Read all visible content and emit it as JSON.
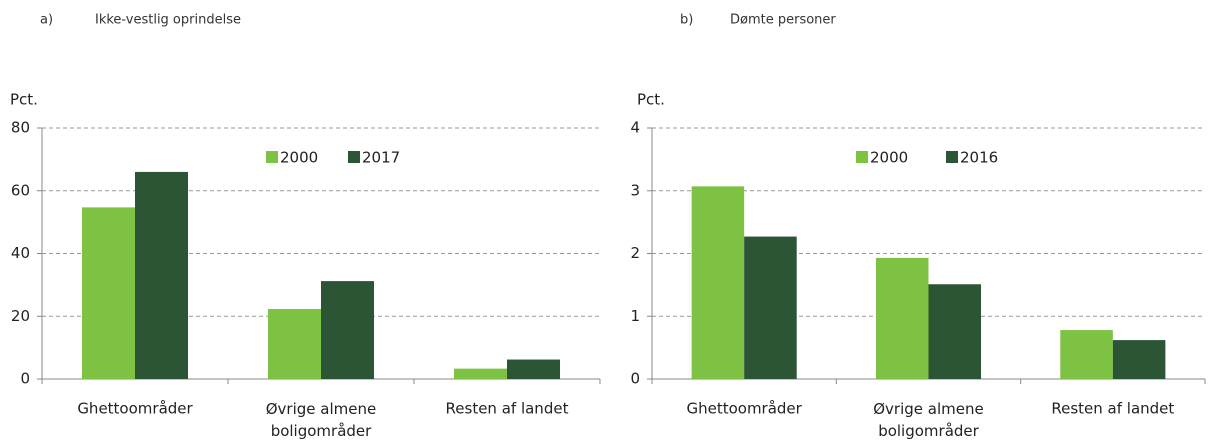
{
  "chart_data": [
    {
      "type": "bar",
      "panel": "a)",
      "title": "Ikke-vestlig oprindelse",
      "y_label": "Pct.",
      "categories": [
        "Ghettoområder",
        "Øvrige almene boligområder",
        "Resten af landet"
      ],
      "series": [
        {
          "name": "2000",
          "color": "#7dc242",
          "values": [
            54.7,
            22.3,
            3.3
          ]
        },
        {
          "name": "2017",
          "color": "#2b5535",
          "values": [
            66,
            31.2,
            6.2
          ]
        }
      ],
      "ylim": [
        0,
        80
      ],
      "yticks": [
        0,
        20,
        40,
        60,
        80
      ],
      "grid": true
    },
    {
      "type": "bar",
      "panel": "b)",
      "title": "Dømte personer",
      "y_label": "Pct.",
      "categories": [
        "Ghettoområder",
        "Øvrige almene boligområder",
        "Resten af landet"
      ],
      "series": [
        {
          "name": "2000",
          "color": "#7dc242",
          "values": [
            3.07,
            1.93,
            0.78
          ]
        },
        {
          "name": "2016",
          "color": "#2b5535",
          "values": [
            2.27,
            1.51,
            0.62
          ]
        }
      ],
      "ylim": [
        0,
        4
      ],
      "yticks": [
        0,
        1,
        2,
        3,
        4
      ],
      "grid": true
    }
  ]
}
